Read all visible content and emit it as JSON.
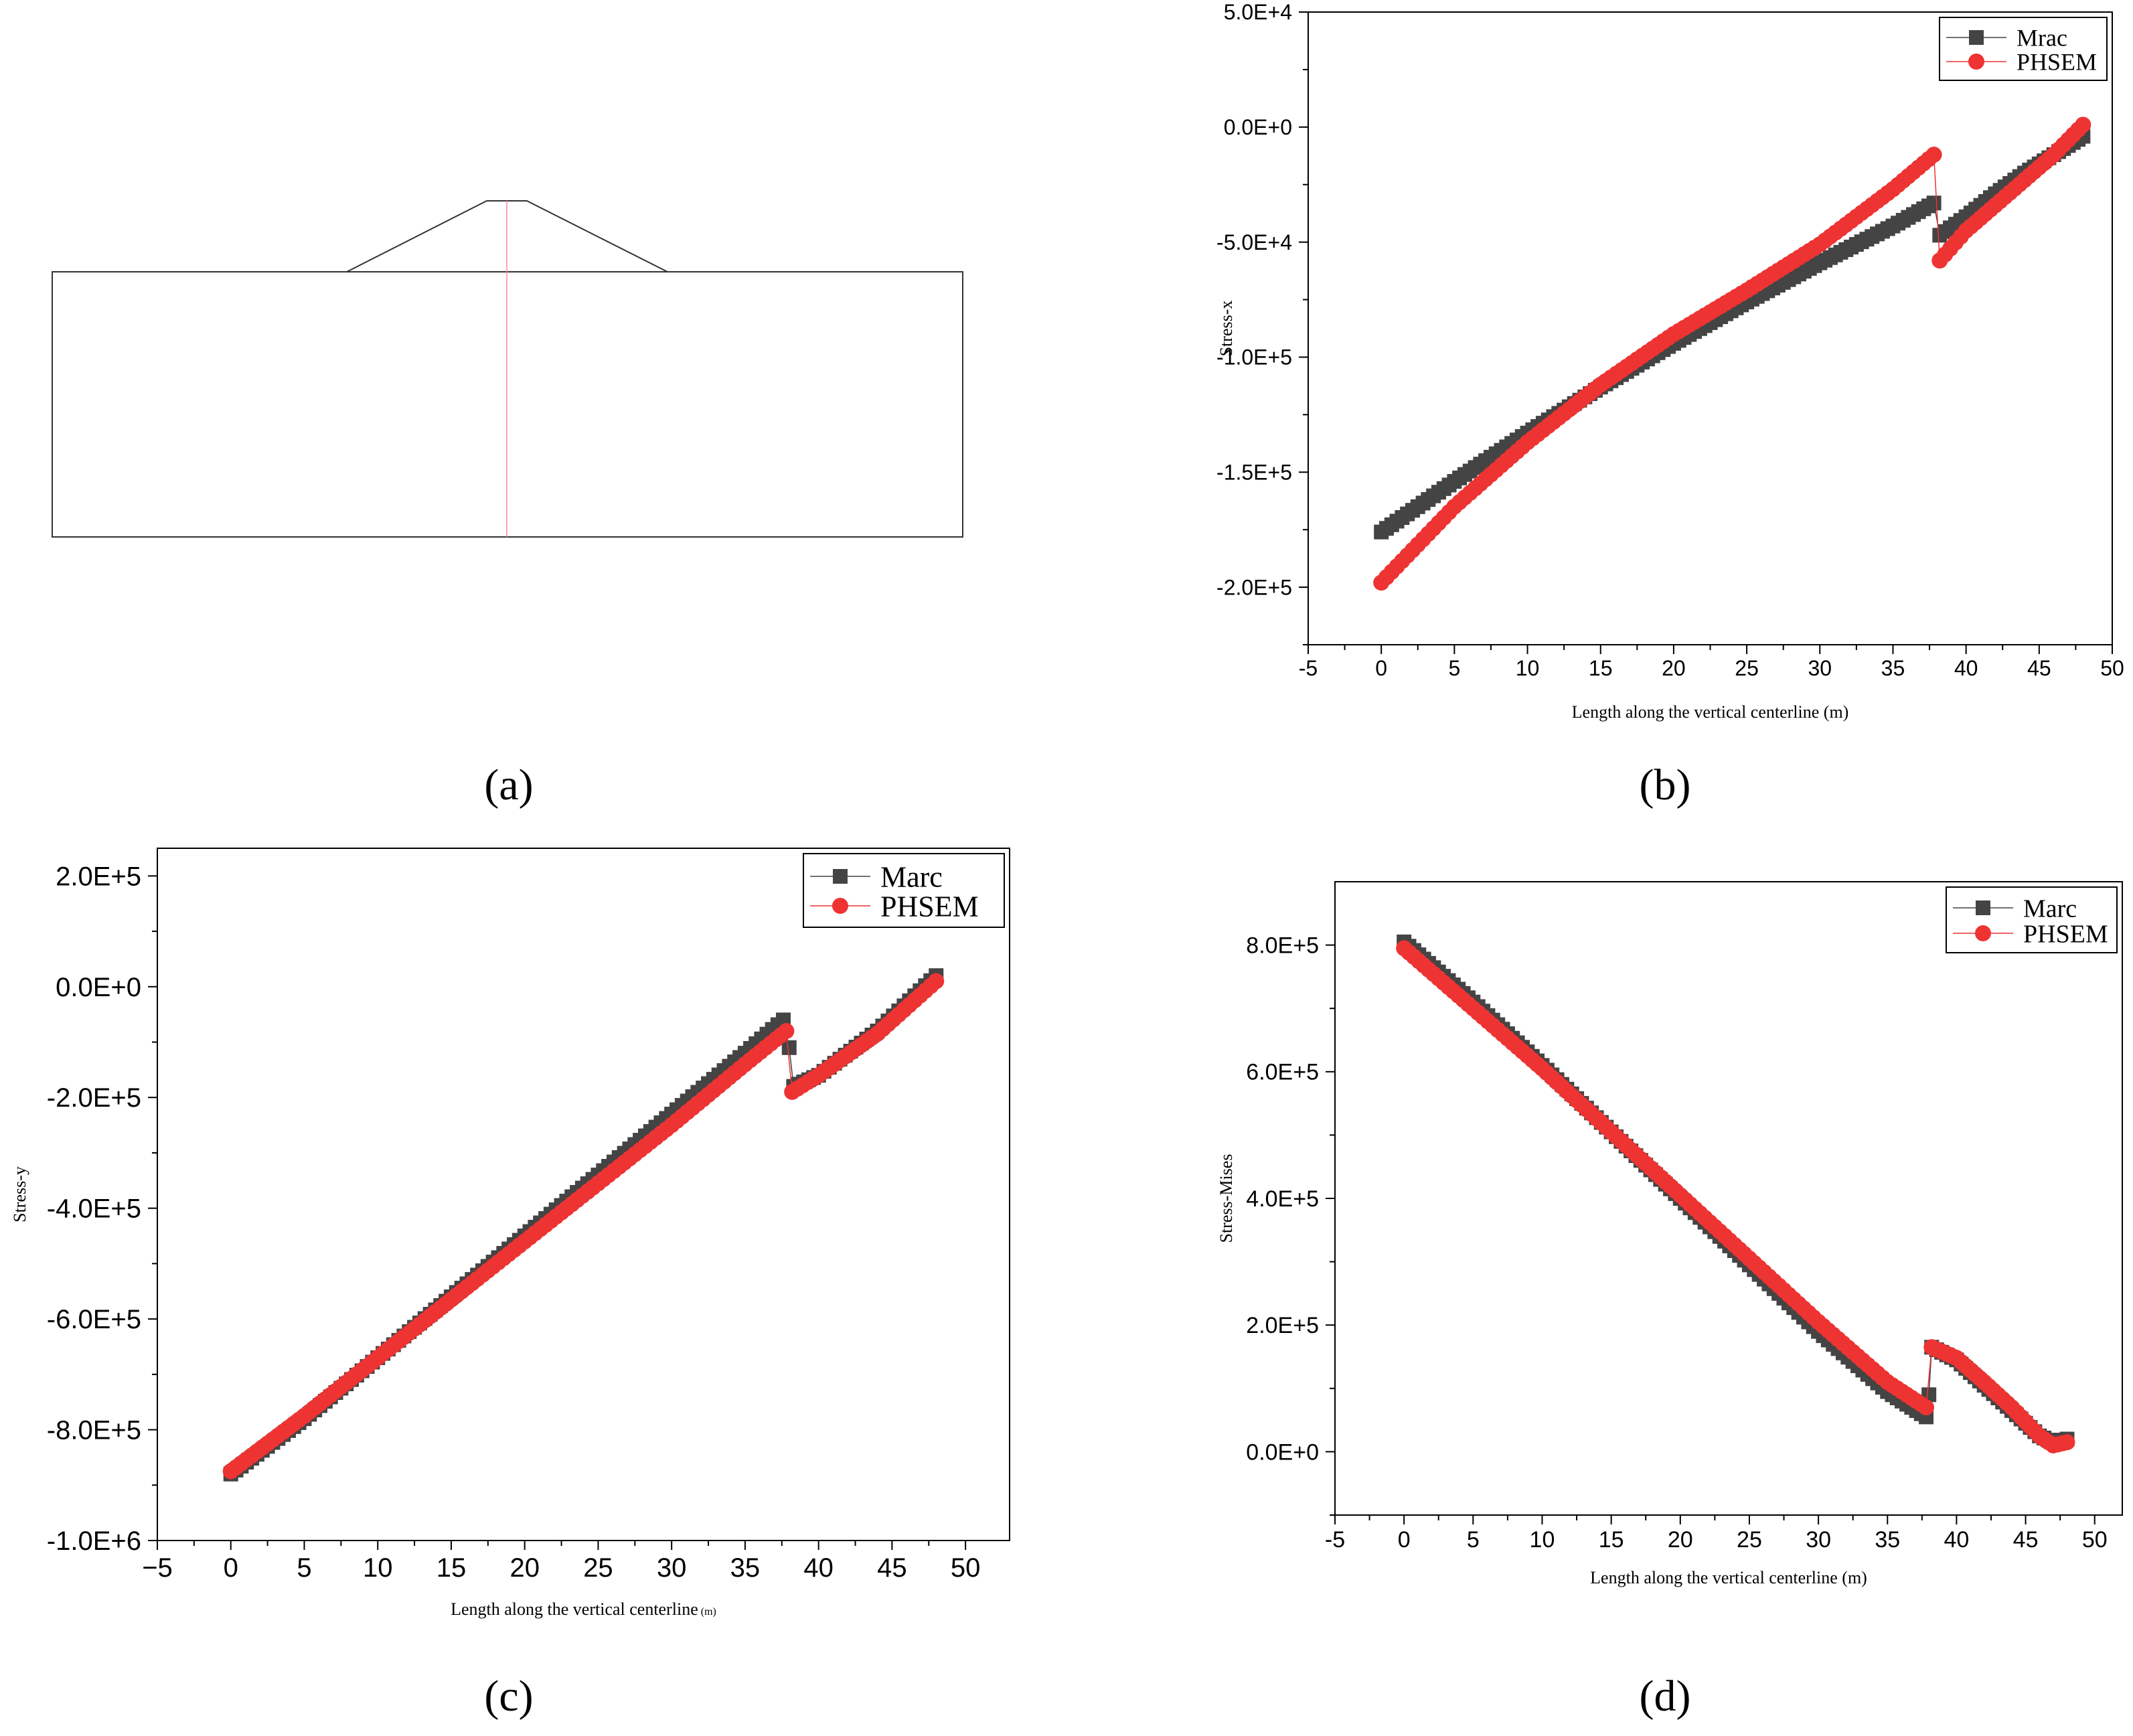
{
  "colors": {
    "marc": "#444444",
    "phsem": "#ee3333",
    "axis": "#000000",
    "centerline": "#ff8899"
  },
  "panels": {
    "a": {
      "label": "(a)"
    },
    "b": {
      "label": "(b)"
    },
    "c": {
      "label": "(c)"
    },
    "d": {
      "label": "(d)"
    }
  },
  "chart_data": [
    {
      "id": "b",
      "type": "scatter",
      "ylabel": "Stress-x",
      "xlabel": "Length along the vertical centerline (m)",
      "xlim": [
        -5,
        50
      ],
      "ylim": [
        -225000,
        50000
      ],
      "xticks": [
        -5,
        0,
        5,
        10,
        15,
        20,
        25,
        30,
        35,
        40,
        45,
        50
      ],
      "xtick_labels": [
        "-5",
        "0",
        "5",
        "10",
        "15",
        "20",
        "25",
        "30",
        "35",
        "40",
        "45",
        "50"
      ],
      "yticks": [
        50000,
        0,
        -50000,
        -100000,
        -150000,
        -200000
      ],
      "ytick_labels": [
        "5.0E+4",
        "0.0E+0",
        "-5.0E+4",
        "-1.0E+5",
        "-1.5E+5",
        "-2.0E+5"
      ],
      "legend": {
        "position": "top-right",
        "entries": [
          "Mrac",
          "PHSEM"
        ]
      },
      "series": [
        {
          "name": "Mrac",
          "marker": "square",
          "points": [
            [
              0,
              -176000
            ],
            [
              5,
              -154000
            ],
            [
              10,
              -133000
            ],
            [
              15,
              -113000
            ],
            [
              20,
              -94000
            ],
            [
              25,
              -76000
            ],
            [
              30,
              -59000
            ],
            [
              35,
              -43000
            ],
            [
              37.8,
              -33000
            ],
            [
              38.2,
              -47000
            ],
            [
              40,
              -39000
            ],
            [
              42,
              -29000
            ],
            [
              44,
              -20000
            ],
            [
              46,
              -12000
            ],
            [
              48,
              -4000
            ]
          ]
        },
        {
          "name": "PHSEM",
          "marker": "circle",
          "points": [
            [
              0,
              -198000
            ],
            [
              5,
              -165000
            ],
            [
              10,
              -137000
            ],
            [
              15,
              -112000
            ],
            [
              20,
              -90000
            ],
            [
              25,
              -71000
            ],
            [
              30,
              -51000
            ],
            [
              35,
              -27000
            ],
            [
              37.8,
              -12000
            ],
            [
              38.2,
              -58000
            ],
            [
              40,
              -45000
            ],
            [
              42,
              -34000
            ],
            [
              44,
              -23000
            ],
            [
              46,
              -12000
            ],
            [
              48,
              1000
            ]
          ]
        }
      ]
    },
    {
      "id": "c",
      "type": "scatter",
      "ylabel": "Stress-y",
      "xlabel": "Length along the vertical centerline",
      "xlabel_unit": "(m)",
      "xlim": [
        -5,
        53
      ],
      "ylim": [
        -1000000,
        250000
      ],
      "xticks": [
        -5,
        0,
        5,
        10,
        15,
        20,
        25,
        30,
        35,
        40,
        45,
        50
      ],
      "xtick_labels": [
        "−5",
        "0",
        "5",
        "10",
        "15",
        "20",
        "25",
        "30",
        "35",
        "40",
        "45",
        "50"
      ],
      "yticks": [
        200000,
        0,
        -200000,
        -400000,
        -600000,
        -800000,
        -1000000
      ],
      "ytick_labels": [
        "2.0E+5",
        "0.0E+0",
        "-2.0E+5",
        "-4.0E+5",
        "-6.0E+5",
        "-8.0E+5",
        "-1.0E+6"
      ],
      "legend": {
        "position": "top-right",
        "entries": [
          "Marc",
          "PHSEM"
        ]
      },
      "series": [
        {
          "name": "Marc",
          "marker": "square",
          "points": [
            [
              0,
              -880000
            ],
            [
              5,
              -780000
            ],
            [
              10,
              -670000
            ],
            [
              15,
              -560000
            ],
            [
              20,
              -450000
            ],
            [
              25,
              -340000
            ],
            [
              30,
              -230000
            ],
            [
              35,
              -120000
            ],
            [
              37.6,
              -60000
            ],
            [
              38,
              -110000
            ],
            [
              38.3,
              -180000
            ],
            [
              40,
              -160000
            ],
            [
              44,
              -80000
            ],
            [
              48,
              20000
            ]
          ]
        },
        {
          "name": "PHSEM",
          "marker": "circle",
          "points": [
            [
              0,
              -875000
            ],
            [
              5,
              -775000
            ],
            [
              10,
              -670000
            ],
            [
              15,
              -565000
            ],
            [
              20,
              -460000
            ],
            [
              25,
              -355000
            ],
            [
              30,
              -250000
            ],
            [
              35,
              -140000
            ],
            [
              37.8,
              -80000
            ],
            [
              38.2,
              -190000
            ],
            [
              40,
              -160000
            ],
            [
              44,
              -85000
            ],
            [
              48,
              10000
            ]
          ]
        }
      ]
    },
    {
      "id": "d",
      "type": "scatter",
      "ylabel": "Stress-Mises",
      "xlabel": "Length along the vertical centerline (m)",
      "xlim": [
        -5,
        52
      ],
      "ylim": [
        -100000,
        900000
      ],
      "xticks": [
        -5,
        0,
        5,
        10,
        15,
        20,
        25,
        30,
        35,
        40,
        45,
        50
      ],
      "xtick_labels": [
        "-5",
        "0",
        "5",
        "10",
        "15",
        "20",
        "25",
        "30",
        "35",
        "40",
        "45",
        "50"
      ],
      "yticks": [
        800000,
        600000,
        400000,
        200000,
        0
      ],
      "ytick_labels": [
        "8.0E+5",
        "6.0E+5",
        "4.0E+5",
        "2.0E+5",
        "0.0E+0"
      ],
      "legend": {
        "position": "top-right",
        "entries": [
          "Marc",
          "PHSEM"
        ]
      },
      "series": [
        {
          "name": "Marc",
          "marker": "square",
          "points": [
            [
              0,
              805000
            ],
            [
              5,
              710000
            ],
            [
              10,
              610000
            ],
            [
              15,
              505000
            ],
            [
              20,
              400000
            ],
            [
              25,
              295000
            ],
            [
              30,
              190000
            ],
            [
              35,
              95000
            ],
            [
              37.8,
              55000
            ],
            [
              38,
              90000
            ],
            [
              38.2,
              165000
            ],
            [
              40,
              145000
            ],
            [
              42,
              105000
            ],
            [
              44,
              65000
            ],
            [
              46,
              25000
            ],
            [
              47,
              15000
            ],
            [
              48,
              20000
            ]
          ]
        },
        {
          "name": "PHSEM",
          "marker": "circle",
          "points": [
            [
              0,
              795000
            ],
            [
              5,
              700000
            ],
            [
              10,
              605000
            ],
            [
              15,
              505000
            ],
            [
              20,
              405000
            ],
            [
              25,
              305000
            ],
            [
              30,
              205000
            ],
            [
              35,
              110000
            ],
            [
              37.8,
              70000
            ],
            [
              38.2,
              165000
            ],
            [
              40,
              148000
            ],
            [
              42,
              110000
            ],
            [
              44,
              70000
            ],
            [
              46,
              25000
            ],
            [
              47,
              10000
            ],
            [
              48,
              15000
            ]
          ]
        }
      ]
    }
  ]
}
